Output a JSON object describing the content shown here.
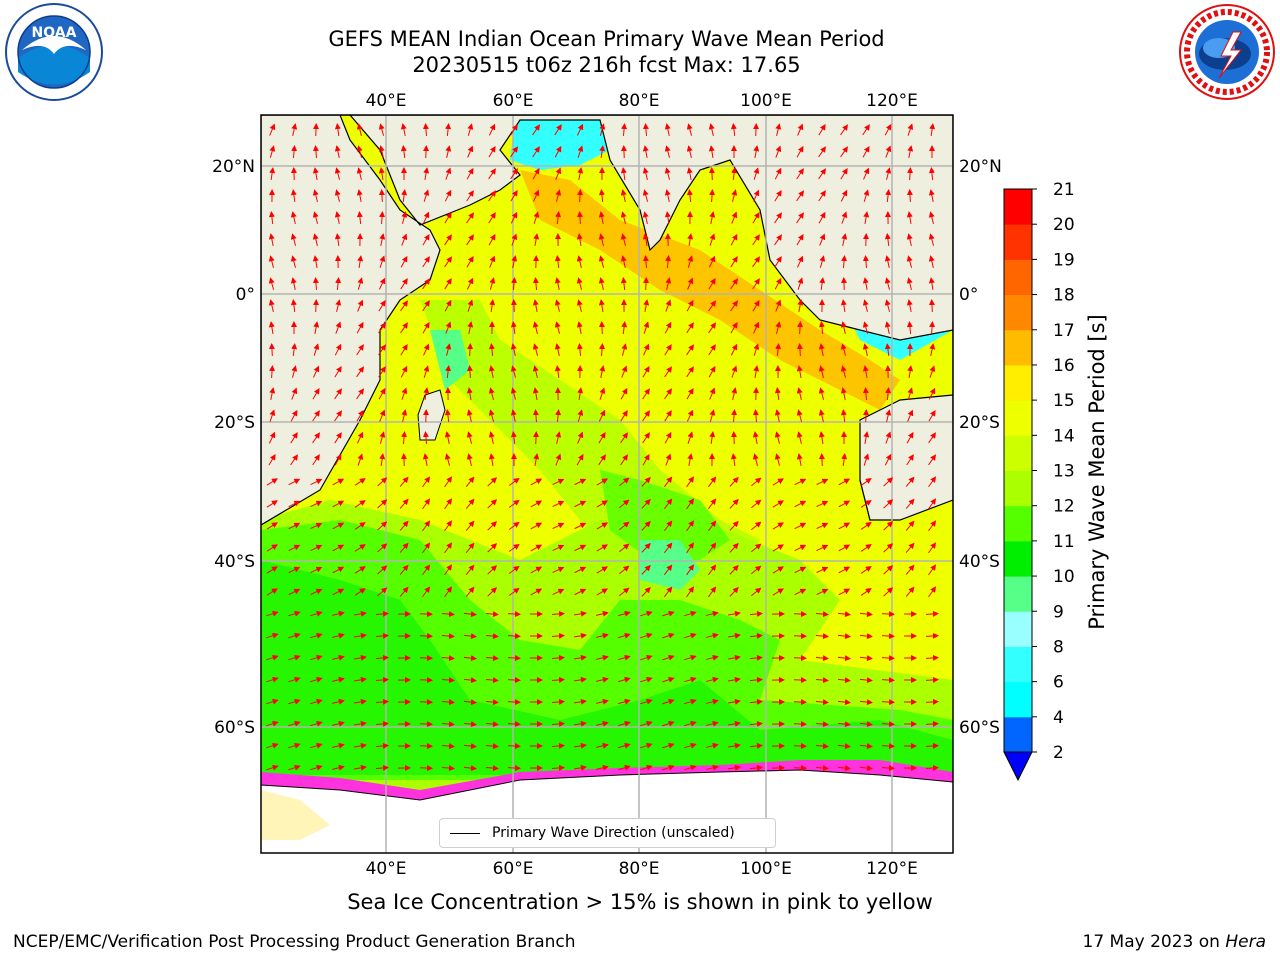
{
  "header": {
    "title_line1": "GEFS MEAN Indian Ocean Primary Wave Mean Period",
    "title_line2": "20230515 t06z 216h fcst   Max: 17.65"
  },
  "logos": {
    "left": {
      "icon": "noaa-logo",
      "text": "NOAA"
    },
    "right": {
      "icon": "nws-logo"
    }
  },
  "map": {
    "lon_ticks": [
      "40°E",
      "60°E",
      "80°E",
      "100°E",
      "120°E"
    ],
    "lat_ticks_left": [
      "20°N",
      "0°",
      "20°S",
      "40°S",
      "60°S"
    ],
    "lat_ticks_right": [
      "20°N",
      "0°",
      "20°S",
      "40°S",
      "60°S"
    ],
    "lon_range": [
      20,
      130
    ],
    "lat_range": [
      -75,
      27
    ],
    "gridlines": true,
    "legend_label": "Primary Wave Direction (unscaled)",
    "colors": {
      "land": "#efefdf",
      "ice_free_land": "#ffffff",
      "vector": "#ff0000",
      "sea_ice": "#ff33dd"
    }
  },
  "colorbar": {
    "label": "Primary Wave Mean Period [s]",
    "levels": [
      2,
      4,
      6,
      8,
      9,
      10,
      11,
      12,
      13,
      14,
      15,
      16,
      17,
      18,
      19,
      20,
      21
    ],
    "colors": [
      "#0066ff",
      "#00ffff",
      "#33ffff",
      "#99ffff",
      "#55ff88",
      "#00ee00",
      "#55ff00",
      "#aaff00",
      "#ccff00",
      "#eeff00",
      "#ffee00",
      "#ffbb00",
      "#ff8800",
      "#ff6600",
      "#ff3300",
      "#ff0000"
    ],
    "extend_min_color": "#0000ff"
  },
  "notes": {
    "sea_ice": "Sea Ice Concentration > 15% is shown in pink to yellow"
  },
  "footer": {
    "left": "NCEP/EMC/Verification Post Processing Product Generation Branch",
    "right_date": "17 May 2023 on",
    "right_host": "Hera"
  }
}
